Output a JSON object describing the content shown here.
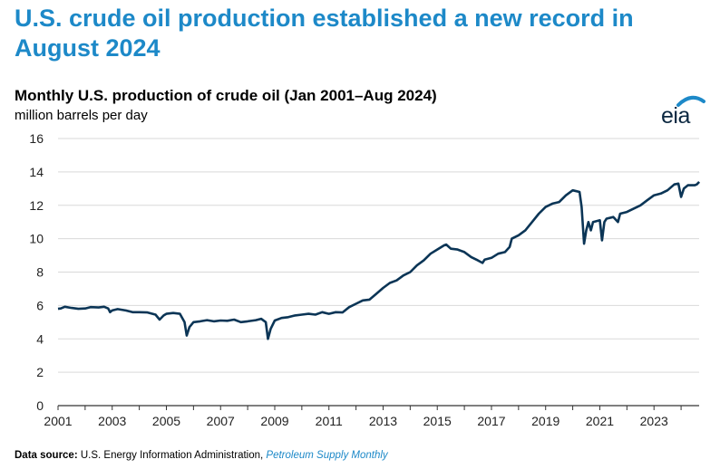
{
  "headline": "U.S. crude oil production established a new record in August 2024",
  "logo_text": "eia",
  "footer": {
    "label": "Data source:",
    "source": "U.S. Energy Information Administration,",
    "publication": "Petroleum Supply Monthly"
  },
  "colors": {
    "headline": "#1D89C8",
    "line": "#0B3556",
    "grid": "#d9d9d9",
    "logo_arc": "#1D89C8"
  },
  "chart_data": {
    "type": "line",
    "title": "Monthly U.S. production of crude oil (Jan 2001–Aug 2024)",
    "ylabel": "million barrels per day",
    "xlabel": "",
    "ylim": [
      0,
      16
    ],
    "xlim": [
      2001.0,
      2024.6667
    ],
    "yticks": [
      "0",
      "2",
      "4",
      "6",
      "8",
      "10",
      "12",
      "14",
      "16"
    ],
    "xticks": [
      "2001",
      "2003",
      "2005",
      "2007",
      "2009",
      "2011",
      "2013",
      "2015",
      "2017",
      "2019",
      "2021",
      "2023"
    ],
    "grid": true,
    "legend": "none",
    "series": [
      {
        "points": [
          [
            2001.0,
            5.8
          ],
          [
            2001.1,
            5.82
          ],
          [
            2001.25,
            5.92
          ],
          [
            2001.5,
            5.85
          ],
          [
            2001.75,
            5.8
          ],
          [
            2002.0,
            5.82
          ],
          [
            2002.2,
            5.9
          ],
          [
            2002.5,
            5.88
          ],
          [
            2002.7,
            5.92
          ],
          [
            2002.85,
            5.82
          ],
          [
            2002.92,
            5.6
          ],
          [
            2003.0,
            5.7
          ],
          [
            2003.2,
            5.78
          ],
          [
            2003.5,
            5.7
          ],
          [
            2003.75,
            5.6
          ],
          [
            2004.0,
            5.6
          ],
          [
            2004.3,
            5.58
          ],
          [
            2004.6,
            5.45
          ],
          [
            2004.75,
            5.15
          ],
          [
            2004.9,
            5.4
          ],
          [
            2005.0,
            5.5
          ],
          [
            2005.25,
            5.55
          ],
          [
            2005.5,
            5.5
          ],
          [
            2005.67,
            5.0
          ],
          [
            2005.75,
            4.2
          ],
          [
            2005.85,
            4.7
          ],
          [
            2006.0,
            5.0
          ],
          [
            2006.25,
            5.05
          ],
          [
            2006.5,
            5.12
          ],
          [
            2006.75,
            5.05
          ],
          [
            2007.0,
            5.1
          ],
          [
            2007.25,
            5.08
          ],
          [
            2007.5,
            5.15
          ],
          [
            2007.75,
            5.0
          ],
          [
            2008.0,
            5.05
          ],
          [
            2008.3,
            5.12
          ],
          [
            2008.5,
            5.2
          ],
          [
            2008.67,
            5.0
          ],
          [
            2008.75,
            4.0
          ],
          [
            2008.85,
            4.6
          ],
          [
            2009.0,
            5.1
          ],
          [
            2009.25,
            5.25
          ],
          [
            2009.5,
            5.3
          ],
          [
            2009.75,
            5.4
          ],
          [
            2010.0,
            5.45
          ],
          [
            2010.25,
            5.5
          ],
          [
            2010.5,
            5.45
          ],
          [
            2010.75,
            5.6
          ],
          [
            2011.0,
            5.5
          ],
          [
            2011.25,
            5.6
          ],
          [
            2011.5,
            5.58
          ],
          [
            2011.75,
            5.9
          ],
          [
            2012.0,
            6.1
          ],
          [
            2012.25,
            6.3
          ],
          [
            2012.5,
            6.35
          ],
          [
            2012.75,
            6.7
          ],
          [
            2013.0,
            7.05
          ],
          [
            2013.25,
            7.35
          ],
          [
            2013.5,
            7.5
          ],
          [
            2013.75,
            7.8
          ],
          [
            2014.0,
            8.0
          ],
          [
            2014.25,
            8.4
          ],
          [
            2014.5,
            8.7
          ],
          [
            2014.75,
            9.1
          ],
          [
            2015.0,
            9.35
          ],
          [
            2015.25,
            9.6
          ],
          [
            2015.33,
            9.65
          ],
          [
            2015.5,
            9.4
          ],
          [
            2015.75,
            9.35
          ],
          [
            2016.0,
            9.2
          ],
          [
            2016.25,
            8.9
          ],
          [
            2016.5,
            8.7
          ],
          [
            2016.67,
            8.55
          ],
          [
            2016.75,
            8.75
          ],
          [
            2017.0,
            8.85
          ],
          [
            2017.25,
            9.1
          ],
          [
            2017.5,
            9.2
          ],
          [
            2017.67,
            9.5
          ],
          [
            2017.75,
            10.0
          ],
          [
            2018.0,
            10.2
          ],
          [
            2018.25,
            10.5
          ],
          [
            2018.5,
            11.0
          ],
          [
            2018.75,
            11.5
          ],
          [
            2019.0,
            11.9
          ],
          [
            2019.25,
            12.1
          ],
          [
            2019.5,
            12.2
          ],
          [
            2019.75,
            12.6
          ],
          [
            2020.0,
            12.9
          ],
          [
            2020.25,
            12.8
          ],
          [
            2020.33,
            11.9
          ],
          [
            2020.42,
            9.7
          ],
          [
            2020.5,
            10.5
          ],
          [
            2020.58,
            11.0
          ],
          [
            2020.67,
            10.5
          ],
          [
            2020.75,
            11.0
          ],
          [
            2021.0,
            11.1
          ],
          [
            2021.08,
            9.9
          ],
          [
            2021.17,
            11.0
          ],
          [
            2021.25,
            11.2
          ],
          [
            2021.5,
            11.3
          ],
          [
            2021.67,
            11.0
          ],
          [
            2021.75,
            11.5
          ],
          [
            2022.0,
            11.6
          ],
          [
            2022.25,
            11.8
          ],
          [
            2022.5,
            12.0
          ],
          [
            2022.75,
            12.3
          ],
          [
            2023.0,
            12.6
          ],
          [
            2023.25,
            12.7
          ],
          [
            2023.5,
            12.9
          ],
          [
            2023.75,
            13.25
          ],
          [
            2023.9,
            13.3
          ],
          [
            2024.0,
            12.5
          ],
          [
            2024.1,
            13.0
          ],
          [
            2024.25,
            13.2
          ],
          [
            2024.5,
            13.2
          ],
          [
            2024.58,
            13.25
          ],
          [
            2024.67,
            13.4
          ]
        ]
      }
    ]
  }
}
